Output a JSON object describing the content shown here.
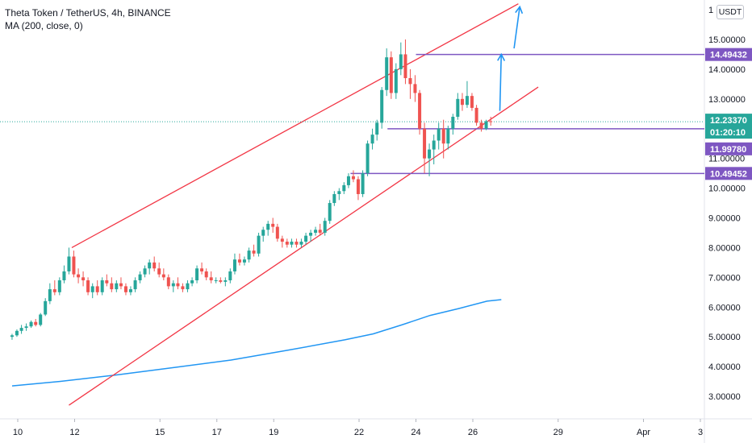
{
  "header": {
    "symbol_line": "Theta Token / TetherUS, 4h, BINANCE",
    "indicator_line": "MA (200, close, 0)"
  },
  "currency_button": "USDT",
  "colors": {
    "up": "#26a69a",
    "down": "#ef5350",
    "channel": "#f23645",
    "level": "#7e57c2",
    "ma": "#2196f3",
    "arrow": "#2196f3",
    "last_price": "#26a69a"
  },
  "chart_data": {
    "type": "candlestick",
    "title": "Theta Token / TetherUS, 4h, BINANCE",
    "y_axis": {
      "ticks": [
        "3.00000",
        "4.00000",
        "5.00000",
        "6.00000",
        "7.00000",
        "8.00000",
        "9.00000",
        "10.00000",
        "11.00000",
        "12.00000",
        "13.00000",
        "14.00000",
        "15.00000"
      ],
      "top_partial_tick": "1",
      "range": [
        2.7,
        16.2
      ]
    },
    "x_axis": {
      "ticks": [
        {
          "label": "10",
          "day": 10
        },
        {
          "label": "12",
          "day": 12
        },
        {
          "label": "15",
          "day": 15
        },
        {
          "label": "17",
          "day": 17
        },
        {
          "label": "19",
          "day": 19
        },
        {
          "label": "22",
          "day": 22
        },
        {
          "label": "24",
          "day": 24
        },
        {
          "label": "26",
          "day": 26
        },
        {
          "label": "29",
          "day": 29
        },
        {
          "label": "Apr",
          "day": 32
        },
        {
          "label": "3",
          "day": 34
        }
      ],
      "range": [
        9.7,
        35.0
      ],
      "unit": "days of March"
    },
    "price_labels": [
      {
        "text": "14.49432",
        "value": 14.49432,
        "kind": "level"
      },
      {
        "text": "12.23370",
        "value": 12.2337,
        "kind": "last"
      },
      {
        "text": "01:20:10",
        "value": 12.2337,
        "kind": "countdown"
      },
      {
        "text": "11.99780",
        "value": 11.9978,
        "kind": "level"
      },
      {
        "text": "10.49452",
        "value": 10.49452,
        "kind": "level"
      }
    ],
    "horizontal_levels": [
      {
        "value": 14.49432,
        "from_day": 24.0
      },
      {
        "value": 11.9978,
        "from_day": 23.0
      },
      {
        "value": 10.49452,
        "from_day": 21.7
      }
    ],
    "channel": {
      "upper": {
        "from": {
          "day": 11.9,
          "value": 8.0
        },
        "to": {
          "day": 27.6,
          "value": 16.2
        }
      },
      "lower": {
        "from": {
          "day": 11.8,
          "value": 2.7
        },
        "to": {
          "day": 28.3,
          "value": 13.4
        }
      }
    },
    "arrows": [
      {
        "from": {
          "day": 26.95,
          "value": 12.6
        },
        "to": {
          "day": 27.0,
          "value": 14.5
        }
      },
      {
        "from": {
          "day": 27.45,
          "value": 14.7
        },
        "to": {
          "day": 27.65,
          "value": 16.1
        }
      }
    ],
    "ma200": {
      "name": "MA (200, close, 0)",
      "points": [
        [
          9.8,
          3.35
        ],
        [
          11.5,
          3.5
        ],
        [
          13.5,
          3.72
        ],
        [
          15.5,
          3.97
        ],
        [
          17.5,
          4.22
        ],
        [
          19.5,
          4.55
        ],
        [
          21.5,
          4.9
        ],
        [
          22.5,
          5.1
        ],
        [
          23.5,
          5.4
        ],
        [
          24.5,
          5.72
        ],
        [
          25.5,
          5.95
        ],
        [
          26.5,
          6.2
        ],
        [
          27.0,
          6.25
        ]
      ]
    },
    "candles": [
      [
        9.8,
        5.0,
        5.1,
        4.9,
        5.05
      ],
      [
        9.97,
        5.05,
        5.25,
        5.0,
        5.2
      ],
      [
        10.13,
        5.2,
        5.4,
        5.1,
        5.3
      ],
      [
        10.3,
        5.3,
        5.45,
        5.2,
        5.35
      ],
      [
        10.47,
        5.35,
        5.55,
        5.3,
        5.5
      ],
      [
        10.63,
        5.5,
        5.6,
        5.35,
        5.4
      ],
      [
        10.8,
        5.4,
        5.8,
        5.35,
        5.75
      ],
      [
        10.97,
        5.75,
        6.3,
        5.7,
        6.2
      ],
      [
        11.13,
        6.2,
        6.8,
        6.1,
        6.6
      ],
      [
        11.3,
        6.6,
        6.9,
        6.4,
        6.5
      ],
      [
        11.47,
        6.5,
        7.0,
        6.4,
        6.9
      ],
      [
        11.63,
        6.9,
        7.4,
        6.8,
        7.2
      ],
      [
        11.8,
        7.2,
        8.0,
        7.1,
        7.7
      ],
      [
        11.97,
        7.7,
        7.9,
        7.0,
        7.1
      ],
      [
        12.13,
        7.1,
        7.3,
        6.8,
        7.0
      ],
      [
        12.3,
        7.0,
        7.2,
        6.7,
        6.9
      ],
      [
        12.47,
        6.9,
        7.0,
        6.4,
        6.5
      ],
      [
        12.63,
        6.5,
        6.8,
        6.3,
        6.7
      ],
      [
        12.8,
        6.7,
        6.9,
        6.4,
        6.5
      ],
      [
        12.97,
        6.5,
        7.0,
        6.4,
        6.9
      ],
      [
        13.13,
        6.9,
        7.1,
        6.7,
        6.8
      ],
      [
        13.3,
        6.8,
        7.0,
        6.5,
        6.6
      ],
      [
        13.47,
        6.6,
        6.9,
        6.5,
        6.8
      ],
      [
        13.63,
        6.8,
        7.0,
        6.6,
        6.7
      ],
      [
        13.8,
        6.7,
        6.8,
        6.4,
        6.5
      ],
      [
        13.97,
        6.5,
        6.7,
        6.4,
        6.6
      ],
      [
        14.13,
        6.6,
        7.0,
        6.5,
        6.9
      ],
      [
        14.3,
        6.9,
        7.2,
        6.8,
        7.1
      ],
      [
        14.47,
        7.1,
        7.4,
        7.0,
        7.3
      ],
      [
        14.63,
        7.3,
        7.6,
        7.1,
        7.5
      ],
      [
        14.8,
        7.5,
        7.7,
        7.2,
        7.3
      ],
      [
        14.97,
        7.3,
        7.5,
        7.0,
        7.1
      ],
      [
        15.13,
        7.1,
        7.3,
        6.9,
        7.0
      ],
      [
        15.3,
        7.0,
        7.1,
        6.6,
        6.7
      ],
      [
        15.47,
        6.7,
        6.9,
        6.5,
        6.8
      ],
      [
        15.63,
        6.8,
        7.0,
        6.6,
        6.7
      ],
      [
        15.8,
        6.7,
        6.8,
        6.5,
        6.6
      ],
      [
        15.97,
        6.6,
        6.9,
        6.5,
        6.8
      ],
      [
        16.13,
        6.8,
        7.0,
        6.7,
        6.9
      ],
      [
        16.3,
        6.9,
        7.4,
        6.8,
        7.3
      ],
      [
        16.47,
        7.3,
        7.5,
        7.1,
        7.2
      ],
      [
        16.63,
        7.2,
        7.3,
        6.9,
        7.0
      ],
      [
        16.8,
        7.0,
        7.2,
        6.8,
        6.9
      ],
      [
        16.97,
        6.9,
        7.0,
        6.8,
        6.9
      ],
      [
        17.13,
        6.9,
        7.0,
        6.8,
        6.85
      ],
      [
        17.3,
        6.85,
        7.0,
        6.7,
        6.9
      ],
      [
        17.47,
        6.9,
        7.3,
        6.8,
        7.2
      ],
      [
        17.63,
        7.2,
        7.8,
        7.1,
        7.6
      ],
      [
        17.8,
        7.6,
        7.8,
        7.4,
        7.5
      ],
      [
        17.97,
        7.5,
        7.7,
        7.4,
        7.6
      ],
      [
        18.13,
        7.6,
        8.0,
        7.5,
        7.9
      ],
      [
        18.3,
        7.9,
        8.1,
        7.7,
        7.8
      ],
      [
        18.47,
        7.8,
        8.5,
        7.7,
        8.4
      ],
      [
        18.63,
        8.4,
        8.7,
        8.2,
        8.6
      ],
      [
        18.8,
        8.6,
        8.9,
        8.4,
        8.8
      ],
      [
        18.97,
        8.8,
        9.0,
        8.5,
        8.7
      ],
      [
        19.13,
        8.7,
        8.8,
        8.2,
        8.3
      ],
      [
        19.3,
        8.3,
        8.4,
        8.0,
        8.2
      ],
      [
        19.47,
        8.2,
        8.3,
        8.0,
        8.1
      ],
      [
        19.63,
        8.1,
        8.3,
        8.0,
        8.2
      ],
      [
        19.8,
        8.2,
        8.3,
        8.0,
        8.1
      ],
      [
        19.97,
        8.1,
        8.3,
        8.0,
        8.2
      ],
      [
        20.13,
        8.2,
        8.5,
        8.1,
        8.4
      ],
      [
        20.3,
        8.4,
        8.6,
        8.2,
        8.5
      ],
      [
        20.47,
        8.5,
        8.7,
        8.4,
        8.6
      ],
      [
        20.63,
        8.6,
        8.8,
        8.4,
        8.5
      ],
      [
        20.8,
        8.5,
        9.0,
        8.4,
        8.9
      ],
      [
        20.97,
        8.9,
        9.6,
        8.8,
        9.5
      ],
      [
        21.13,
        9.5,
        9.9,
        9.4,
        9.8
      ],
      [
        21.3,
        9.8,
        10.0,
        9.6,
        9.9
      ],
      [
        21.47,
        9.9,
        10.2,
        9.8,
        10.1
      ],
      [
        21.63,
        10.1,
        10.5,
        10.0,
        10.4
      ],
      [
        21.8,
        10.4,
        10.6,
        10.2,
        10.3
      ],
      [
        21.97,
        10.3,
        10.4,
        9.6,
        9.8
      ],
      [
        22.13,
        9.8,
        10.6,
        9.7,
        10.5
      ],
      [
        22.3,
        10.5,
        11.6,
        10.4,
        11.5
      ],
      [
        22.47,
        11.5,
        12.0,
        11.3,
        11.8
      ],
      [
        22.63,
        11.8,
        12.3,
        11.6,
        12.2
      ],
      [
        22.8,
        12.2,
        13.4,
        12.0,
        13.3
      ],
      [
        22.97,
        13.3,
        14.7,
        13.1,
        14.4
      ],
      [
        23.13,
        14.4,
        14.6,
        13.0,
        13.2
      ],
      [
        23.3,
        13.2,
        14.2,
        13.0,
        14.0
      ],
      [
        23.47,
        14.0,
        14.9,
        13.8,
        14.5
      ],
      [
        23.63,
        14.5,
        15.0,
        13.5,
        13.7
      ],
      [
        23.8,
        13.7,
        14.0,
        13.0,
        13.5
      ],
      [
        23.97,
        13.5,
        13.8,
        12.9,
        13.2
      ],
      [
        24.13,
        13.2,
        13.3,
        11.8,
        12.0
      ],
      [
        24.3,
        12.0,
        12.2,
        10.5,
        11.0
      ],
      [
        24.47,
        11.0,
        11.5,
        10.4,
        11.3
      ],
      [
        24.63,
        11.3,
        11.8,
        10.8,
        11.6
      ],
      [
        24.8,
        11.6,
        12.2,
        11.3,
        12.0
      ],
      [
        24.97,
        12.0,
        12.3,
        11.0,
        11.5
      ],
      [
        25.13,
        11.5,
        12.1,
        11.3,
        12.0
      ],
      [
        25.3,
        12.0,
        12.5,
        11.8,
        12.4
      ],
      [
        25.47,
        12.4,
        13.2,
        12.3,
        13.0
      ],
      [
        25.63,
        13.0,
        13.2,
        12.6,
        12.8
      ],
      [
        25.8,
        12.8,
        13.6,
        12.7,
        13.1
      ],
      [
        25.97,
        13.1,
        13.2,
        12.6,
        12.7
      ],
      [
        26.13,
        12.7,
        12.8,
        12.1,
        12.2
      ],
      [
        26.3,
        12.2,
        12.3,
        11.9,
        12.0
      ],
      [
        26.47,
        12.0,
        12.3,
        11.95,
        12.25
      ],
      [
        26.63,
        12.25,
        12.4,
        12.1,
        12.23
      ]
    ]
  }
}
